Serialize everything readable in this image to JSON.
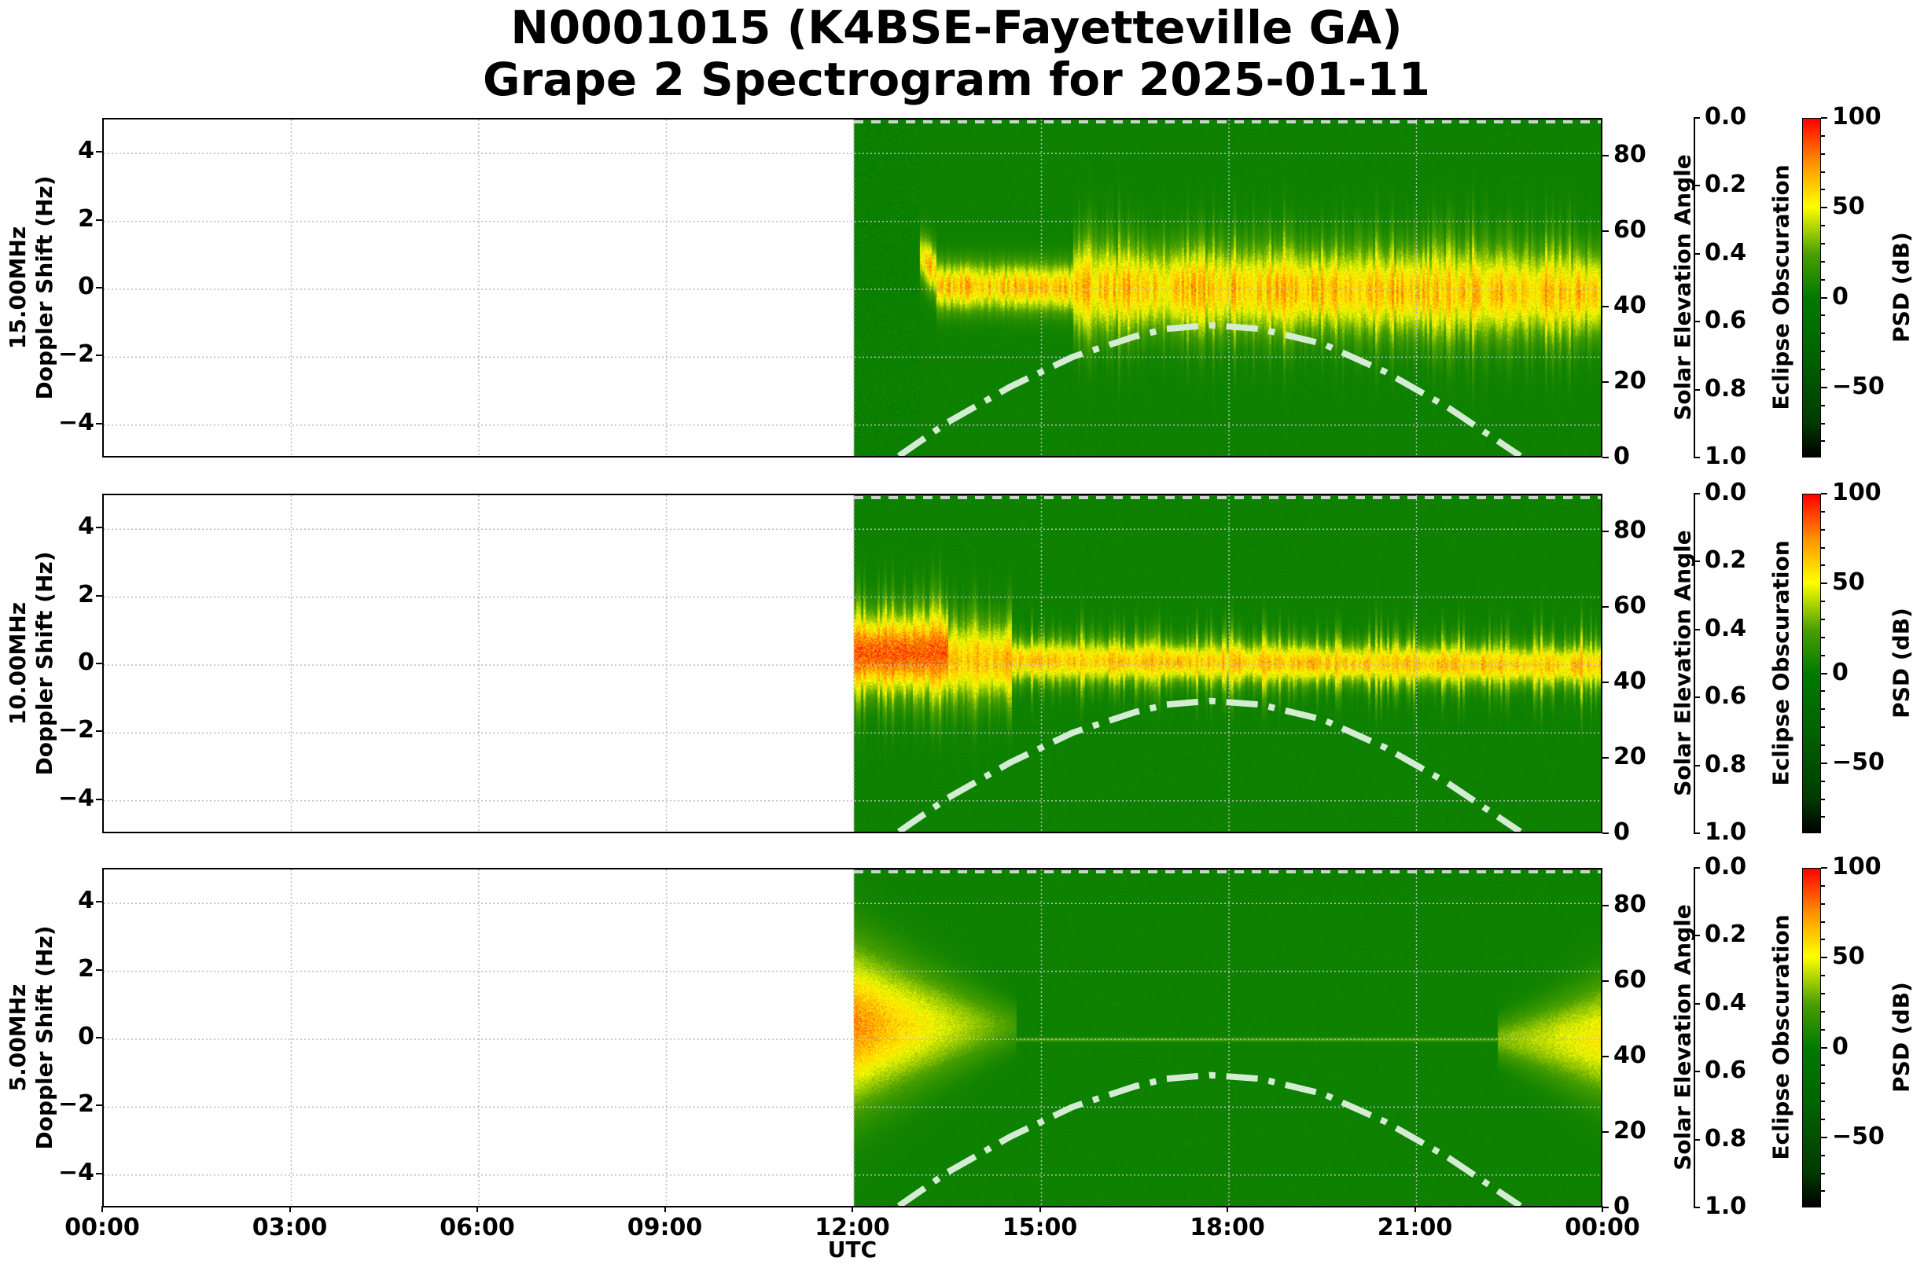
{
  "title": {
    "line1": "N0001015 (K4BSE-Fayetteville GA)",
    "line2": "Grape 2 Spectrogram for 2025-01-11"
  },
  "xaxis": {
    "label": "UTC",
    "ticks": [
      "00:00",
      "03:00",
      "06:00",
      "09:00",
      "12:00",
      "15:00",
      "18:00",
      "21:00",
      "00:00"
    ]
  },
  "panels": [
    {
      "freq_label": "15.00MHz",
      "ylabel": "Doppler Shift (Hz)"
    },
    {
      "freq_label": "10.00MHz",
      "ylabel": "Doppler Shift (Hz)"
    },
    {
      "freq_label": "5.00MHz",
      "ylabel": "Doppler Shift (Hz)"
    }
  ],
  "yaxis": {
    "ticks": [
      "4",
      "2",
      "0",
      "−2",
      "−4"
    ]
  },
  "solar_axis": {
    "label": "Solar Elevation Angle",
    "ticks": [
      "80",
      "60",
      "40",
      "20",
      "0"
    ]
  },
  "eclipse_axis": {
    "label": "Eclipse Obscuration",
    "ticks": [
      "0.0",
      "0.2",
      "0.4",
      "0.6",
      "0.8",
      "1.0"
    ]
  },
  "colorbar": {
    "label": "PSD (dB)",
    "ticks": [
      "100",
      "50",
      "0",
      "−50"
    ]
  },
  "colors": {
    "background_green": "#0b7a0b",
    "signal_yellow": "#ffff00",
    "peak_red": "#ff2000",
    "solar_curve": "#d4ecd4"
  },
  "chart_data": {
    "type": "heatmap",
    "title": "N0001015 (K4BSE-Fayetteville GA) Grape 2 Spectrogram for 2025-01-11",
    "xlabel": "UTC",
    "x_range_hours": [
      0,
      24
    ],
    "x_ticks": [
      "00:00",
      "03:00",
      "06:00",
      "09:00",
      "12:00",
      "15:00",
      "18:00",
      "21:00",
      "00:00"
    ],
    "ylabel": "Doppler Shift (Hz)",
    "ylim": [
      -5,
      5
    ],
    "y_ticks": [
      -4,
      -2,
      0,
      2,
      4
    ],
    "grid": true,
    "data_start_hour": 12.0,
    "data_end_hour": 24.0,
    "colorbar": {
      "label": "PSD (dB)",
      "range": [
        -89,
        100
      ],
      "ticks": [
        -50,
        0,
        50,
        100
      ],
      "colormap": "black-green-yellow-red"
    },
    "secondary_axes": {
      "solar_elevation": {
        "label": "Solar Elevation Angle",
        "range": [
          0,
          90
        ],
        "ticks": [
          0,
          20,
          40,
          60,
          80
        ]
      },
      "eclipse_obscuration": {
        "label": "Eclipse Obscuration",
        "range": [
          0.0,
          1.0
        ],
        "inverted": true,
        "ticks": [
          0.0,
          0.2,
          0.4,
          0.6,
          0.8,
          1.0
        ]
      }
    },
    "solar_elevation_curve": {
      "style": "dash-dot",
      "x_hours": [
        12.72,
        13.5,
        14.5,
        15.5,
        16.5,
        17.0,
        17.7,
        18.5,
        19.5,
        20.5,
        21.5,
        22.66
      ],
      "y_degrees": [
        0,
        9,
        18.5,
        26.5,
        32,
        34,
        35,
        34,
        30,
        22.5,
        13,
        0
      ]
    },
    "eclipse_obscuration_line": {
      "style": "dashed",
      "value": 0.0
    },
    "series": [
      {
        "name": "15.00MHz",
        "carrier_doppler_hz": 0.1,
        "signal_start_hour": 13.1,
        "description": "Carrier near 0 Hz from ~13:00 with spread ±2 Hz, peak around 13:05 near +1.2 Hz; broadening spikes 16:00-24:00"
      },
      {
        "name": "10.00MHz",
        "carrier_doppler_hz": 0.15,
        "signal_start_hour": 12.0,
        "description": "Strong carrier from 12:00 with red peak near +0.3 Hz at 12:00-13:00; spread up to +2.5 Hz through the day"
      },
      {
        "name": "5.00MHz",
        "carrier_doppler_hz": 0.0,
        "signal_start_hour": 12.0,
        "description": "Strong broad signal 12:00-14:30 (up to +3 Hz, red at ~0 to +0.5 Hz), weak line at 0 Hz until 22:00, spreading again 22:30-24:00"
      }
    ]
  }
}
